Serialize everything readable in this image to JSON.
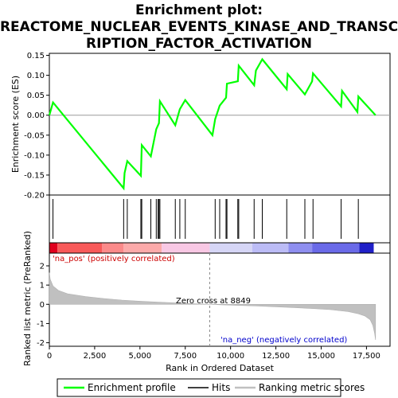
{
  "chart_data": {
    "type": "line",
    "title_lines": [
      "Enrichment plot:",
      "REACTOME_NUCLEAR_EVENTS_KINASE_AND_TRANSC",
      "RIPTION_FACTOR_ACTIVATION"
    ],
    "top_panel": {
      "ylabel": "Enrichment score (ES)",
      "ylim": [
        -0.2,
        0.155
      ],
      "yticks": [
        "0.15",
        "0.10",
        "0.05",
        "0.00",
        "-0.05",
        "-0.10",
        "-0.15",
        "-0.20"
      ],
      "ytick_values": [
        0.15,
        0.1,
        0.05,
        0.0,
        -0.05,
        -0.1,
        -0.15,
        -0.2
      ],
      "series": [
        {
          "name": "Enrichment profile",
          "color": "#00ff00",
          "x": [
            0,
            200,
            4100,
            4150,
            4300,
            5050,
            5100,
            5600,
            5900,
            6050,
            6100,
            6950,
            7200,
            7500,
            9000,
            9150,
            9400,
            9750,
            9800,
            10400,
            10450,
            11300,
            11400,
            11750,
            13100,
            13150,
            14100,
            14500,
            14550,
            16100,
            16150,
            17000,
            17050,
            18000
          ],
          "y": [
            0.0,
            0.032,
            -0.183,
            -0.145,
            -0.115,
            -0.152,
            -0.075,
            -0.103,
            -0.035,
            -0.02,
            0.035,
            -0.025,
            0.015,
            0.038,
            -0.05,
            -0.01,
            0.024,
            0.044,
            0.079,
            0.085,
            0.124,
            0.075,
            0.112,
            0.14,
            0.065,
            0.103,
            0.052,
            0.085,
            0.105,
            0.022,
            0.061,
            0.008,
            0.047,
            0.0
          ]
        }
      ]
    },
    "hits": {
      "name": "Hits",
      "color": "#000000",
      "x": [
        200,
        4100,
        4300,
        5050,
        5100,
        5600,
        5900,
        6000,
        6050,
        6100,
        6950,
        7200,
        7500,
        9150,
        9400,
        9750,
        9800,
        10400,
        10450,
        11300,
        11750,
        13100,
        14100,
        14550,
        16100,
        17050
      ]
    },
    "heatmap_bar": {
      "label_pos": "'na_pos' (positively correlated)",
      "label_neg": "'na_neg' (negatively correlated)",
      "label_pos_color": "#cc0000",
      "label_neg_color": "#0000cc",
      "segments": [
        {
          "from": 0,
          "to": 450,
          "color": "#e0001e"
        },
        {
          "from": 450,
          "to": 2900,
          "color": "#f85a5a"
        },
        {
          "from": 2900,
          "to": 4100,
          "color": "#fb8a8a"
        },
        {
          "from": 4100,
          "to": 6200,
          "color": "#fcaaaa"
        },
        {
          "from": 6200,
          "to": 8849,
          "color": "#f8c8e4"
        },
        {
          "from": 8849,
          "to": 11200,
          "color": "#d6d6f6"
        },
        {
          "from": 11200,
          "to": 13200,
          "color": "#bcbcf6"
        },
        {
          "from": 13200,
          "to": 14500,
          "color": "#8f8ff0"
        },
        {
          "from": 14500,
          "to": 17100,
          "color": "#6a6ae8"
        },
        {
          "from": 17100,
          "to": 17900,
          "color": "#2020c8"
        },
        {
          "from": 17900,
          "to": 18000,
          "color": "#ffffff"
        }
      ]
    },
    "bottom_panel": {
      "ylabel": "Ranked list metric (PreRanked)",
      "ylim": [
        -2.1,
        3.2
      ],
      "yticks": [
        "2",
        "1",
        "0",
        "-1",
        "-2"
      ],
      "ytick_values": [
        2,
        1,
        0,
        -1,
        -2
      ],
      "series": [
        {
          "name": "Ranking metric scores",
          "color": "#c0c0c0",
          "x": [
            0,
            50,
            200,
            500,
            1000,
            2000,
            3000,
            4000,
            5000,
            6000,
            7000,
            8000,
            8849,
            9500,
            10500,
            11500,
            12500,
            13500,
            14500,
            15500,
            16500,
            17000,
            17400,
            17700,
            17850,
            17950,
            18000
          ],
          "y": [
            1.65,
            1.3,
            0.95,
            0.72,
            0.55,
            0.4,
            0.3,
            0.22,
            0.16,
            0.11,
            0.07,
            0.03,
            0.0,
            -0.03,
            -0.06,
            -0.09,
            -0.13,
            -0.17,
            -0.22,
            -0.28,
            -0.38,
            -0.48,
            -0.6,
            -0.8,
            -1.1,
            -1.5,
            -1.85
          ]
        }
      ],
      "zero_cross_label": "Zero cross at 8849",
      "zero_cross": 8849
    },
    "xaxis": {
      "xlabel": "Rank in Ordered Dataset",
      "xlim": [
        0,
        18800
      ],
      "xticks": [
        "0",
        "2,500",
        "5,000",
        "7,500",
        "10,000",
        "12,500",
        "15,000",
        "17,500"
      ],
      "xtick_values": [
        0,
        2500,
        5000,
        7500,
        10000,
        12500,
        15000,
        17500
      ]
    },
    "legend": {
      "placement": "bottom",
      "entries": [
        {
          "label": "Enrichment profile",
          "color": "#00ff00"
        },
        {
          "label": "Hits",
          "color": "#000000"
        },
        {
          "label": "Ranking metric scores",
          "color": "#c0c0c0"
        }
      ]
    }
  }
}
